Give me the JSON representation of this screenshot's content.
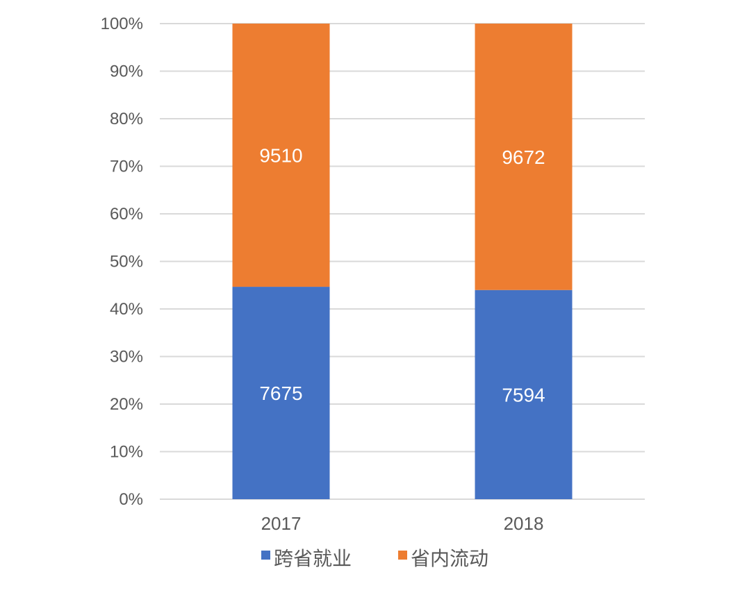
{
  "chart_data": {
    "type": "bar",
    "stacked": "percent",
    "categories": [
      "2017",
      "2018"
    ],
    "series": [
      {
        "name": "跨省就业",
        "values": [
          7675,
          7594
        ],
        "color": "#4472C4"
      },
      {
        "name": "省内流动",
        "values": [
          9510,
          9672
        ],
        "color": "#ED7D31"
      }
    ],
    "y_ticks": [
      "0%",
      "10%",
      "20%",
      "30%",
      "40%",
      "50%",
      "60%",
      "70%",
      "80%",
      "90%",
      "100%"
    ],
    "ylim": [
      0,
      100
    ],
    "grid": true,
    "legend_position": "bottom",
    "gridline_color": "#D9D9D9",
    "label_color": "#595959"
  }
}
